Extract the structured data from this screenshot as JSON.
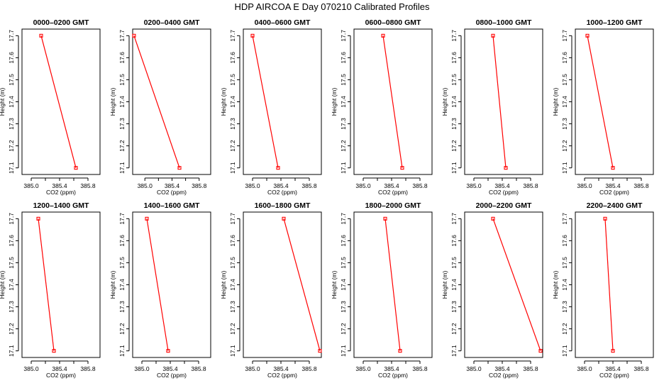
{
  "page_title": "HDP  AIRCOA E  Day 070210  Calibrated Profiles",
  "chart_data": [
    {
      "type": "line",
      "title": "0000–0200 GMT",
      "xlabel": "CO2 (ppm)",
      "ylabel": "Height (m)",
      "series": [
        {
          "points": [
            {
              "x": 385.14,
              "y": 17.7
            },
            {
              "x": 385.63,
              "y": 17.1
            }
          ]
        }
      ],
      "xticks": [
        "385.0",
        "385.4",
        "385.8"
      ],
      "yticks": [
        "17.1",
        "17.2",
        "17.3",
        "17.4",
        "17.5",
        "17.6",
        "17.7"
      ],
      "xlim": [
        384.87,
        385.97
      ],
      "ylim": [
        17.07,
        17.73
      ],
      "color": "#ff0000"
    },
    {
      "type": "line",
      "title": "0200–0400 GMT",
      "xlabel": "CO2 (ppm)",
      "ylabel": "Height (m)",
      "series": [
        {
          "points": [
            {
              "x": 384.84,
              "y": 17.7
            },
            {
              "x": 385.51,
              "y": 17.1
            }
          ]
        }
      ],
      "xticks": [
        "385.0",
        "385.4",
        "385.8"
      ],
      "yticks": [
        "17.1",
        "17.2",
        "17.3",
        "17.4",
        "17.5",
        "17.6",
        "17.7"
      ],
      "xlim": [
        384.82,
        385.97
      ],
      "ylim": [
        17.07,
        17.73
      ],
      "color": "#ff0000"
    },
    {
      "type": "line",
      "title": "0400–0600 GMT",
      "xlabel": "CO2 (ppm)",
      "ylabel": "Height (m)",
      "series": [
        {
          "points": [
            {
              "x": 385.0,
              "y": 17.7
            },
            {
              "x": 385.36,
              "y": 17.1
            }
          ]
        }
      ],
      "xticks": [
        "385.0",
        "385.4",
        "385.8"
      ],
      "yticks": [
        "17.1",
        "17.2",
        "17.3",
        "17.4",
        "17.5",
        "17.6",
        "17.7"
      ],
      "xlim": [
        384.87,
        385.97
      ],
      "ylim": [
        17.07,
        17.73
      ],
      "color": "#ff0000"
    },
    {
      "type": "line",
      "title": "0600–0800 GMT",
      "xlabel": "CO2 (ppm)",
      "ylabel": "Height (m)",
      "series": [
        {
          "points": [
            {
              "x": 385.28,
              "y": 17.7
            },
            {
              "x": 385.55,
              "y": 17.1
            }
          ]
        }
      ],
      "xticks": [
        "385.0",
        "385.4",
        "385.8"
      ],
      "yticks": [
        "17.1",
        "17.2",
        "17.3",
        "17.4",
        "17.5",
        "17.6",
        "17.7"
      ],
      "xlim": [
        384.87,
        385.97
      ],
      "ylim": [
        17.07,
        17.73
      ],
      "color": "#ff0000"
    },
    {
      "type": "line",
      "title": "0800–1000 GMT",
      "xlabel": "CO2 (ppm)",
      "ylabel": "Height (m)",
      "series": [
        {
          "points": [
            {
              "x": 385.27,
              "y": 17.7
            },
            {
              "x": 385.45,
              "y": 17.1
            }
          ]
        }
      ],
      "xticks": [
        "385.0",
        "385.4",
        "385.8"
      ],
      "yticks": [
        "17.1",
        "17.2",
        "17.3",
        "17.4",
        "17.5",
        "17.6",
        "17.7"
      ],
      "xlim": [
        384.87,
        385.97
      ],
      "ylim": [
        17.07,
        17.73
      ],
      "color": "#ff0000"
    },
    {
      "type": "line",
      "title": "1000–1200 GMT",
      "xlabel": "CO2 (ppm)",
      "ylabel": "Height (m)",
      "series": [
        {
          "points": [
            {
              "x": 385.04,
              "y": 17.7
            },
            {
              "x": 385.4,
              "y": 17.1
            }
          ]
        }
      ],
      "xticks": [
        "385.0",
        "385.4",
        "385.8"
      ],
      "yticks": [
        "17.1",
        "17.2",
        "17.3",
        "17.4",
        "17.5",
        "17.6",
        "17.7"
      ],
      "xlim": [
        384.87,
        385.97
      ],
      "ylim": [
        17.07,
        17.73
      ],
      "color": "#ff0000"
    },
    {
      "type": "line",
      "title": "1200–1400 GMT",
      "xlabel": "CO2 (ppm)",
      "ylabel": "Height (m)",
      "series": [
        {
          "points": [
            {
              "x": 385.1,
              "y": 17.7
            },
            {
              "x": 385.32,
              "y": 17.1
            }
          ]
        }
      ],
      "xticks": [
        "385.0",
        "385.4",
        "385.8"
      ],
      "yticks": [
        "17.1",
        "17.2",
        "17.3",
        "17.4",
        "17.5",
        "17.6",
        "17.7"
      ],
      "xlim": [
        384.87,
        385.97
      ],
      "ylim": [
        17.07,
        17.73
      ],
      "color": "#ff0000"
    },
    {
      "type": "line",
      "title": "1400–1600 GMT",
      "xlabel": "CO2 (ppm)",
      "ylabel": "Height (m)",
      "series": [
        {
          "points": [
            {
              "x": 385.07,
              "y": 17.7
            },
            {
              "x": 385.37,
              "y": 17.1
            }
          ]
        }
      ],
      "xticks": [
        "385.0",
        "385.4",
        "385.8"
      ],
      "yticks": [
        "17.1",
        "17.2",
        "17.3",
        "17.4",
        "17.5",
        "17.6",
        "17.7"
      ],
      "xlim": [
        384.87,
        385.97
      ],
      "ylim": [
        17.07,
        17.73
      ],
      "color": "#ff0000"
    },
    {
      "type": "line",
      "title": "1600–1800 GMT",
      "xlabel": "CO2 (ppm)",
      "ylabel": "Height (m)",
      "series": [
        {
          "points": [
            {
              "x": 385.44,
              "y": 17.7
            },
            {
              "x": 385.95,
              "y": 17.1
            }
          ]
        }
      ],
      "xticks": [
        "385.0",
        "385.4",
        "385.8"
      ],
      "yticks": [
        "17.1",
        "17.2",
        "17.3",
        "17.4",
        "17.5",
        "17.6",
        "17.7"
      ],
      "xlim": [
        384.87,
        385.97
      ],
      "ylim": [
        17.07,
        17.73
      ],
      "color": "#ff0000"
    },
    {
      "type": "line",
      "title": "1800–2000 GMT",
      "xlabel": "CO2 (ppm)",
      "ylabel": "Height (m)",
      "series": [
        {
          "points": [
            {
              "x": 385.31,
              "y": 17.7
            },
            {
              "x": 385.52,
              "y": 17.1
            }
          ]
        }
      ],
      "xticks": [
        "385.0",
        "385.4",
        "385.8"
      ],
      "yticks": [
        "17.1",
        "17.2",
        "17.3",
        "17.4",
        "17.5",
        "17.6",
        "17.7"
      ],
      "xlim": [
        384.87,
        385.97
      ],
      "ylim": [
        17.07,
        17.73
      ],
      "color": "#ff0000"
    },
    {
      "type": "line",
      "title": "2000–2200 GMT",
      "xlabel": "CO2 (ppm)",
      "ylabel": "Height (m)",
      "series": [
        {
          "points": [
            {
              "x": 385.27,
              "y": 17.7
            },
            {
              "x": 385.94,
              "y": 17.1
            }
          ]
        }
      ],
      "xticks": [
        "385.0",
        "385.4",
        "385.8"
      ],
      "yticks": [
        "17.1",
        "17.2",
        "17.3",
        "17.4",
        "17.5",
        "17.6",
        "17.7"
      ],
      "xlim": [
        384.87,
        385.97
      ],
      "ylim": [
        17.07,
        17.73
      ],
      "color": "#ff0000"
    },
    {
      "type": "line",
      "title": "2200–2400 GMT",
      "xlabel": "CO2 (ppm)",
      "ylabel": "Height (m)",
      "series": [
        {
          "points": [
            {
              "x": 385.29,
              "y": 17.7
            },
            {
              "x": 385.4,
              "y": 17.1
            }
          ]
        }
      ],
      "xticks": [
        "385.0",
        "385.4",
        "385.8"
      ],
      "yticks": [
        "17.1",
        "17.2",
        "17.3",
        "17.4",
        "17.5",
        "17.6",
        "17.7"
      ],
      "xlim": [
        384.87,
        385.97
      ],
      "ylim": [
        17.07,
        17.73
      ],
      "color": "#ff0000"
    }
  ]
}
